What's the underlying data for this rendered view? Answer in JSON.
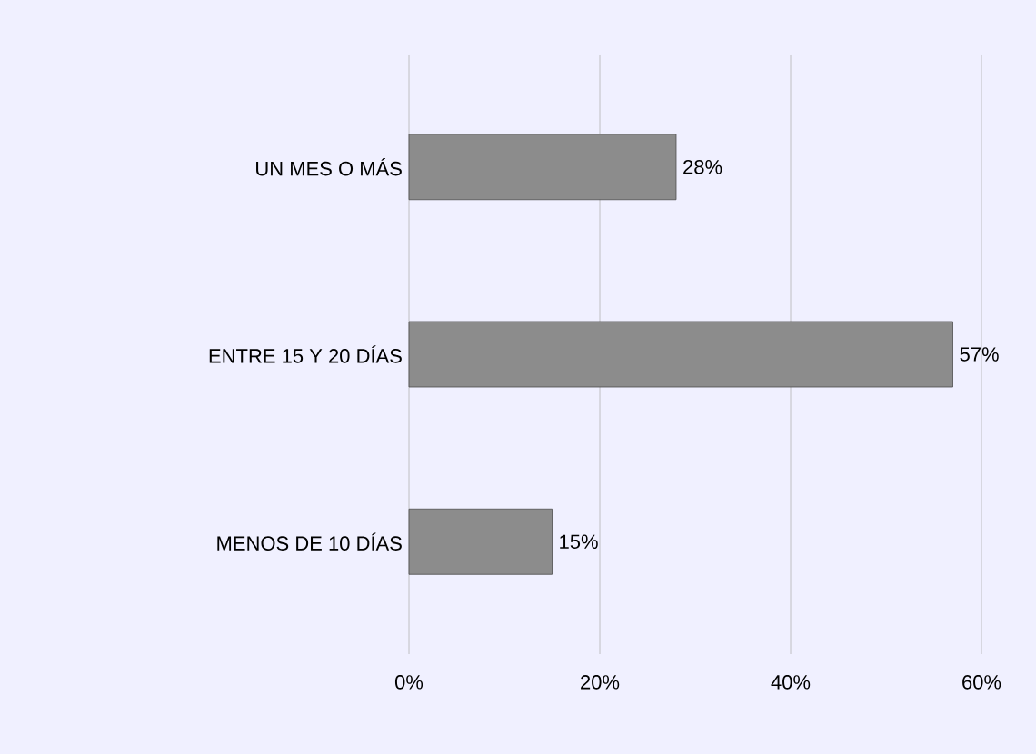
{
  "chart_data": {
    "type": "bar",
    "orientation": "horizontal",
    "categories": [
      "UN MES O MÁS",
      "ENTRE 15 Y 20 DÍAS",
      "MENOS DE 10 DÍAS"
    ],
    "values": [
      28,
      57,
      15
    ],
    "value_labels": [
      "28%",
      "57%",
      "15%"
    ],
    "color": "#8c8c8c",
    "xlim": [
      0,
      60
    ],
    "xticks": [
      {
        "value": 0,
        "label": "0%"
      },
      {
        "value": 20,
        "label": "20%"
      },
      {
        "value": 40,
        "label": "40%"
      },
      {
        "value": 60,
        "label": "60%"
      }
    ],
    "grid": "x"
  }
}
